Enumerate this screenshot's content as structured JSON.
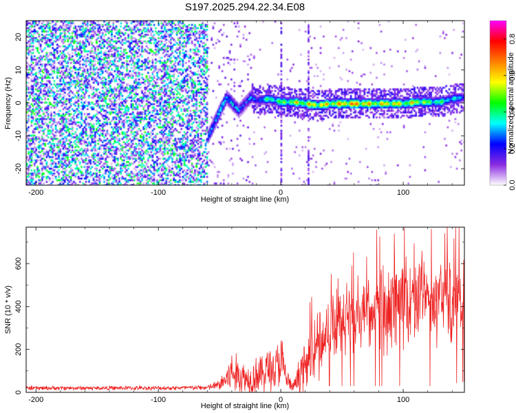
{
  "figure_title": "S197.2025.294.22.34.E08",
  "chart_data": [
    {
      "type": "heatmap",
      "title": "S197.2025.294.22.34.E08",
      "xlabel": "Height of straight line (km)",
      "ylabel": "Frequency (Hz)",
      "xlim": [
        -208,
        150
      ],
      "ylim": [
        -25,
        25
      ],
      "x_ticks": [
        -200,
        -100,
        0,
        100
      ],
      "x_tick_labels": [
        "-200",
        "-100",
        "0",
        "100"
      ],
      "y_ticks": [
        -20,
        -10,
        0,
        10,
        20
      ],
      "y_tick_labels": [
        "-20",
        "-10",
        "0",
        "10",
        "20"
      ],
      "colorbar": {
        "label": "Normalized spectral amplitude",
        "range": [
          0,
          0.9
        ],
        "ticks": [
          0.0,
          0.2,
          0.4,
          0.6,
          0.8
        ],
        "tick_labels": [
          "0.0",
          "0.2",
          "0.4",
          "0.6",
          "0.8"
        ],
        "colors": [
          "#ffffff",
          "#8a2be2",
          "#0000ff",
          "#00ffff",
          "#00ff00",
          "#ffff00",
          "#ff7f00",
          "#ff0000",
          "#ff00ff"
        ]
      },
      "features": {
        "noise_region_x": [
          -208,
          -60
        ],
        "transition_x": [
          -60,
          -25
        ],
        "signal_ridge": {
          "x": [
            -60,
            -55,
            -50,
            -45,
            -40,
            -35,
            -30,
            -25,
            -20,
            -10,
            0,
            10,
            20,
            30,
            40,
            50,
            60,
            70,
            80,
            90,
            100,
            110,
            120,
            130,
            140,
            150
          ],
          "freq": [
            -10,
            -6,
            -2,
            2,
            0,
            -2,
            0,
            2,
            1,
            1.5,
            0.5,
            0.5,
            0,
            -0.5,
            0,
            0,
            0,
            0,
            0,
            0,
            0,
            0.5,
            0.5,
            0.5,
            1.5,
            2
          ],
          "amplitude": [
            0.3,
            0.35,
            0.4,
            0.3,
            0.35,
            0.3,
            0.25,
            0.3,
            0.35,
            0.55,
            0.6,
            0.7,
            0.75,
            0.8,
            0.75,
            0.85,
            0.9,
            0.8,
            0.75,
            0.8,
            0.7,
            0.75,
            0.6,
            0.55,
            0.45,
            0.4
          ]
        },
        "vertical_streaks_x": [
          0,
          22
        ]
      }
    },
    {
      "type": "line",
      "xlabel": "Height of straight line (km)",
      "ylabel": "SNR (10 * v/v)",
      "xlim": [
        -208,
        150
      ],
      "ylim": [
        0,
        770
      ],
      "x_ticks": [
        -200,
        -100,
        0,
        100
      ],
      "x_tick_labels": [
        "-200",
        "-100",
        "0",
        "100"
      ],
      "y_ticks": [
        0,
        200,
        400,
        600
      ],
      "y_tick_labels": [
        "0",
        "200",
        "400",
        "600"
      ],
      "series": [
        {
          "name": "SNR",
          "color": "#ee2222",
          "envelope_x": [
            -208,
            -150,
            -100,
            -60,
            -50,
            -45,
            -40,
            -35,
            -30,
            -25,
            -20,
            -15,
            -10,
            -5,
            0,
            5,
            10,
            15,
            20,
            25,
            30,
            40,
            50,
            60,
            70,
            80,
            90,
            100,
            110,
            120,
            130,
            140,
            150
          ],
          "envelope_mean": [
            20,
            20,
            20,
            22,
            35,
            60,
            90,
            80,
            70,
            60,
            90,
            80,
            120,
            100,
            150,
            60,
            20,
            80,
            120,
            160,
            220,
            300,
            330,
            350,
            370,
            380,
            400,
            420,
            430,
            420,
            430,
            400,
            410
          ],
          "envelope_spread": [
            10,
            10,
            10,
            12,
            25,
            70,
            100,
            90,
            80,
            70,
            100,
            90,
            110,
            100,
            140,
            60,
            15,
            90,
            110,
            150,
            160,
            150,
            160,
            170,
            180,
            190,
            200,
            210,
            220,
            200,
            190,
            180,
            180
          ]
        }
      ]
    }
  ]
}
